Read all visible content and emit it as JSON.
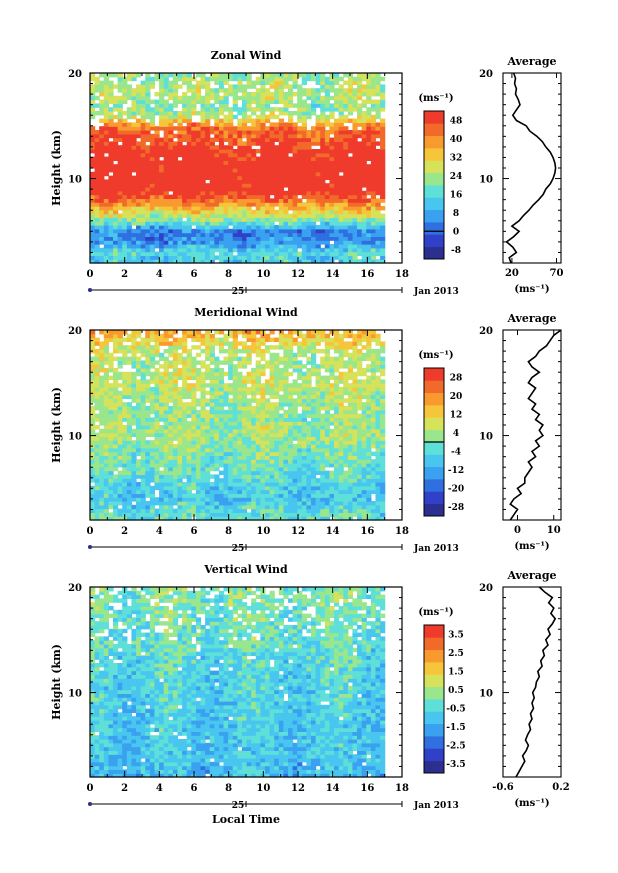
{
  "x_axis_common": {
    "ticks": [
      "0",
      "2",
      "4",
      "6",
      "8",
      "10",
      "12",
      "14",
      "16",
      "18"
    ],
    "date_tick_label": "25",
    "date_label": "Jan 2013",
    "xlabel": "Local Time"
  },
  "chart_data": [
    {
      "type": "heatmap",
      "panel": "zonal",
      "title": "Zonal Wind",
      "xlabel": "Local Time",
      "ylabel": "Height (km)",
      "xlim": [
        0,
        18
      ],
      "ylim": [
        2,
        20
      ],
      "data_xlim": [
        0,
        17
      ],
      "ytick_labels": [
        "20",
        "10"
      ],
      "colorbar": {
        "unit": "(ms⁻¹)",
        "tick_labels": [
          "48",
          "40",
          "32",
          "24",
          "16",
          "8",
          "0",
          "-8"
        ],
        "range": [
          -12,
          52
        ],
        "contour_level": 0,
        "colors": [
          "#2b2f8f",
          "#3040c8",
          "#2f6fe0",
          "#3aa0f0",
          "#48c6f0",
          "#5ee0d8",
          "#9ae68c",
          "#d6e25a",
          "#f6c63a",
          "#f89a2e",
          "#f26a2a",
          "#ef3b2c"
        ]
      },
      "z_profile_km": [
        {
          "h": 2,
          "v": 12
        },
        {
          "h": 3,
          "v": 16
        },
        {
          "h": 4,
          "v": 5
        },
        {
          "h": 5,
          "v": 3
        },
        {
          "h": 6,
          "v": 20
        },
        {
          "h": 7,
          "v": 32
        },
        {
          "h": 8,
          "v": 44
        },
        {
          "h": 9,
          "v": 52
        },
        {
          "h": 10,
          "v": 54
        },
        {
          "h": 11,
          "v": 54
        },
        {
          "h": 12,
          "v": 52
        },
        {
          "h": 13,
          "v": 50
        },
        {
          "h": 14,
          "v": 46
        },
        {
          "h": 15,
          "v": 42
        },
        {
          "h": 16,
          "v": 24
        },
        {
          "h": 17,
          "v": 22
        },
        {
          "h": 18,
          "v": 25
        },
        {
          "h": 19,
          "v": 24
        },
        {
          "h": 20,
          "v": 22
        }
      ],
      "average": {
        "title": "Average",
        "xtick_labels": [
          "20",
          "70"
        ],
        "xlim": [
          10,
          75
        ],
        "unit": "(ms⁻¹)",
        "profile": [
          {
            "h": 2.0,
            "v": 19
          },
          {
            "h": 2.5,
            "v": 17
          },
          {
            "h": 3.0,
            "v": 25
          },
          {
            "h": 3.5,
            "v": 21
          },
          {
            "h": 4.0,
            "v": 14
          },
          {
            "h": 4.5,
            "v": 22
          },
          {
            "h": 5.0,
            "v": 28
          },
          {
            "h": 5.5,
            "v": 20
          },
          {
            "h": 6.0,
            "v": 28
          },
          {
            "h": 6.5,
            "v": 33
          },
          {
            "h": 7.0,
            "v": 39
          },
          {
            "h": 7.5,
            "v": 44
          },
          {
            "h": 8.0,
            "v": 50
          },
          {
            "h": 8.5,
            "v": 55
          },
          {
            "h": 9.0,
            "v": 58
          },
          {
            "h": 9.5,
            "v": 63
          },
          {
            "h": 10.0,
            "v": 66
          },
          {
            "h": 10.5,
            "v": 68
          },
          {
            "h": 11.0,
            "v": 69
          },
          {
            "h": 11.5,
            "v": 68
          },
          {
            "h": 12.0,
            "v": 66
          },
          {
            "h": 12.5,
            "v": 63
          },
          {
            "h": 13.0,
            "v": 58
          },
          {
            "h": 13.5,
            "v": 54
          },
          {
            "h": 14.0,
            "v": 48
          },
          {
            "h": 14.5,
            "v": 40
          },
          {
            "h": 15.0,
            "v": 36
          },
          {
            "h": 15.5,
            "v": 25
          },
          {
            "h": 16.0,
            "v": 21
          },
          {
            "h": 16.5,
            "v": 25
          },
          {
            "h": 17.0,
            "v": 29
          },
          {
            "h": 17.5,
            "v": 27
          },
          {
            "h": 18.0,
            "v": 24
          },
          {
            "h": 18.5,
            "v": 25
          },
          {
            "h": 19.0,
            "v": 23
          },
          {
            "h": 19.5,
            "v": 24
          },
          {
            "h": 20.0,
            "v": 22
          }
        ]
      }
    },
    {
      "type": "heatmap",
      "panel": "meridional",
      "title": "Meridional Wind",
      "xlabel": "Local Time",
      "ylabel": "Height (km)",
      "xlim": [
        0,
        18
      ],
      "ylim": [
        2,
        20
      ],
      "data_xlim": [
        0,
        17
      ],
      "ytick_labels": [
        "20",
        "10"
      ],
      "colorbar": {
        "unit": "(ms⁻¹)",
        "tick_labels": [
          "28",
          "20",
          "12",
          "4",
          "-4",
          "-12",
          "-20",
          "-28"
        ],
        "range": [
          -32,
          32
        ],
        "contour_level": 0,
        "colors": [
          "#2b2f8f",
          "#3040c8",
          "#2f6fe0",
          "#3aa0f0",
          "#48c6f0",
          "#5ee0d8",
          "#9ae68c",
          "#d6e25a",
          "#f6c63a",
          "#f89a2e",
          "#f26a2a",
          "#ef3b2c"
        ]
      },
      "z_profile_km": [
        {
          "h": 2,
          "v": -2
        },
        {
          "h": 3,
          "v": -4
        },
        {
          "h": 4,
          "v": -8
        },
        {
          "h": 5,
          "v": -6
        },
        {
          "h": 6,
          "v": -4
        },
        {
          "h": 7,
          "v": -2
        },
        {
          "h": 8,
          "v": 0
        },
        {
          "h": 9,
          "v": 2
        },
        {
          "h": 10,
          "v": 4
        },
        {
          "h": 11,
          "v": 3
        },
        {
          "h": 12,
          "v": 2
        },
        {
          "h": 13,
          "v": 4
        },
        {
          "h": 14,
          "v": 5
        },
        {
          "h": 15,
          "v": 6
        },
        {
          "h": 16,
          "v": 5
        },
        {
          "h": 17,
          "v": 4
        },
        {
          "h": 18,
          "v": 6
        },
        {
          "h": 19,
          "v": 12
        },
        {
          "h": 20,
          "v": 16
        }
      ],
      "average": {
        "title": "Average",
        "xtick_labels": [
          "0",
          "10"
        ],
        "xlim": [
          -4,
          12
        ],
        "unit": "(ms⁻¹)",
        "profile": [
          {
            "h": 2.0,
            "v": -2
          },
          {
            "h": 2.5,
            "v": -1
          },
          {
            "h": 3.0,
            "v": 0
          },
          {
            "h": 3.5,
            "v": -2
          },
          {
            "h": 4.0,
            "v": -1
          },
          {
            "h": 4.5,
            "v": 1
          },
          {
            "h": 5.0,
            "v": 0
          },
          {
            "h": 5.5,
            "v": 2
          },
          {
            "h": 6.0,
            "v": 2
          },
          {
            "h": 6.5,
            "v": 3
          },
          {
            "h": 7.0,
            "v": 4
          },
          {
            "h": 7.5,
            "v": 3
          },
          {
            "h": 8.0,
            "v": 5
          },
          {
            "h": 8.5,
            "v": 4
          },
          {
            "h": 9.0,
            "v": 6
          },
          {
            "h": 9.5,
            "v": 5
          },
          {
            "h": 10.0,
            "v": 7
          },
          {
            "h": 10.5,
            "v": 6
          },
          {
            "h": 11.0,
            "v": 7
          },
          {
            "h": 11.5,
            "v": 5
          },
          {
            "h": 12.0,
            "v": 6
          },
          {
            "h": 12.5,
            "v": 4
          },
          {
            "h": 13.0,
            "v": 5
          },
          {
            "h": 13.5,
            "v": 3
          },
          {
            "h": 14.0,
            "v": 4
          },
          {
            "h": 14.5,
            "v": 5
          },
          {
            "h": 15.0,
            "v": 3
          },
          {
            "h": 15.5,
            "v": 4
          },
          {
            "h": 16.0,
            "v": 6
          },
          {
            "h": 16.5,
            "v": 4
          },
          {
            "h": 17.0,
            "v": 3
          },
          {
            "h": 17.5,
            "v": 5
          },
          {
            "h": 18.0,
            "v": 6
          },
          {
            "h": 18.5,
            "v": 8
          },
          {
            "h": 19.0,
            "v": 9
          },
          {
            "h": 19.5,
            "v": 10
          },
          {
            "h": 20.0,
            "v": 12
          }
        ]
      }
    },
    {
      "type": "heatmap",
      "panel": "vertical",
      "title": "Vertical Wind",
      "xlabel": "Local Time",
      "ylabel": "Height (km)",
      "xlim": [
        0,
        18
      ],
      "ylim": [
        2,
        20
      ],
      "data_xlim": [
        0,
        17
      ],
      "ytick_labels": [
        "20",
        "10"
      ],
      "colorbar": {
        "unit": "(ms⁻¹)",
        "tick_labels": [
          "3.5",
          "2.5",
          "1.5",
          "0.5",
          "-0.5",
          "-1.5",
          "-2.5",
          "-3.5"
        ],
        "range": [
          -4,
          4
        ],
        "colors": [
          "#2b2f8f",
          "#3040c8",
          "#2f6fe0",
          "#3aa0f0",
          "#48c6f0",
          "#5ee0d8",
          "#9ae68c",
          "#d6e25a",
          "#f6c63a",
          "#f89a2e",
          "#f26a2a",
          "#ef3b2c"
        ]
      },
      "z_profile_km": [
        {
          "h": 2,
          "v": -1.2
        },
        {
          "h": 4,
          "v": -1.0
        },
        {
          "h": 6,
          "v": -0.9
        },
        {
          "h": 8,
          "v": -0.8
        },
        {
          "h": 10,
          "v": -0.7
        },
        {
          "h": 12,
          "v": -0.6
        },
        {
          "h": 14,
          "v": -0.4
        },
        {
          "h": 16,
          "v": -0.2
        },
        {
          "h": 18,
          "v": 0.0
        },
        {
          "h": 20,
          "v": 0.1
        }
      ],
      "average": {
        "title": "Average",
        "xtick_labels": [
          "-0.6",
          "0.2"
        ],
        "xlim": [
          -0.6,
          0.2
        ],
        "unit": "(ms⁻¹)",
        "profile": [
          {
            "h": 2.0,
            "v": -0.42
          },
          {
            "h": 2.5,
            "v": -0.38
          },
          {
            "h": 3.0,
            "v": -0.34
          },
          {
            "h": 3.5,
            "v": -0.3
          },
          {
            "h": 4.0,
            "v": -0.33
          },
          {
            "h": 4.5,
            "v": -0.28
          },
          {
            "h": 5.0,
            "v": -0.25
          },
          {
            "h": 5.5,
            "v": -0.29
          },
          {
            "h": 6.0,
            "v": -0.26
          },
          {
            "h": 6.5,
            "v": -0.22
          },
          {
            "h": 7.0,
            "v": -0.24
          },
          {
            "h": 7.5,
            "v": -0.2
          },
          {
            "h": 8.0,
            "v": -0.22
          },
          {
            "h": 8.5,
            "v": -0.18
          },
          {
            "h": 9.0,
            "v": -0.2
          },
          {
            "h": 9.5,
            "v": -0.17
          },
          {
            "h": 10.0,
            "v": -0.19
          },
          {
            "h": 10.5,
            "v": -0.15
          },
          {
            "h": 11.0,
            "v": -0.14
          },
          {
            "h": 11.5,
            "v": -0.1
          },
          {
            "h": 12.0,
            "v": -0.12
          },
          {
            "h": 12.5,
            "v": -0.06
          },
          {
            "h": 13.0,
            "v": -0.08
          },
          {
            "h": 13.5,
            "v": -0.03
          },
          {
            "h": 14.0,
            "v": -0.05
          },
          {
            "h": 14.5,
            "v": 0.02
          },
          {
            "h": 15.0,
            "v": -0.01
          },
          {
            "h": 15.5,
            "v": 0.05
          },
          {
            "h": 16.0,
            "v": 0.02
          },
          {
            "h": 16.5,
            "v": 0.08
          },
          {
            "h": 17.0,
            "v": 0.12
          },
          {
            "h": 17.5,
            "v": 0.06
          },
          {
            "h": 18.0,
            "v": 0.1
          },
          {
            "h": 18.5,
            "v": 0.03
          },
          {
            "h": 19.0,
            "v": 0.08
          },
          {
            "h": 19.5,
            "v": -0.02
          },
          {
            "h": 20.0,
            "v": -0.1
          }
        ]
      }
    }
  ]
}
